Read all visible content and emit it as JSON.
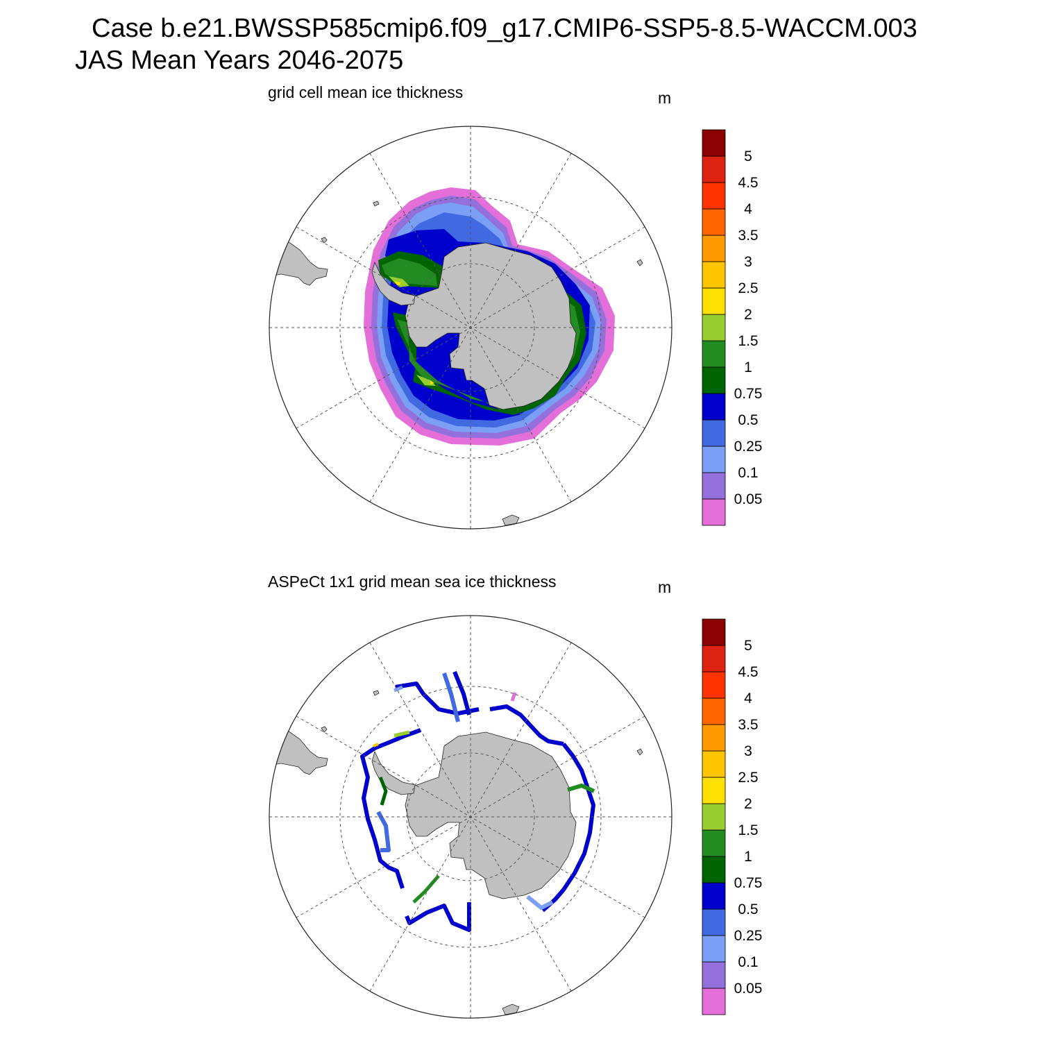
{
  "header": {
    "line1": "Case b.e21.BWSSP585cmip6.f09_g17.CMIP6-SSP5-8.5-WACCM.003",
    "line2": "JAS Mean   Years 2046-2075"
  },
  "colors": {
    "land": "#c0c0c0",
    "ocean": "#ffffff",
    "grid_line": "#555555",
    "levels": [
      "#e46fd9",
      "#9370db",
      "#7b9ff5",
      "#4169e1",
      "#0000cd",
      "#006400",
      "#228b22",
      "#9acd32",
      "#ffe000",
      "#ffc500",
      "#ff9900",
      "#ff6600",
      "#ff3300",
      "#dd2211",
      "#8b0000"
    ]
  },
  "colorbar": {
    "tick_labels": [
      "0.05",
      "0.1",
      "0.25",
      "0.5",
      "0.75",
      "1",
      "1.5",
      "2",
      "2.5",
      "3",
      "3.5",
      "4",
      "4.5",
      "5"
    ]
  },
  "panels": [
    {
      "title": "grid cell mean ice thickness",
      "unit": "m",
      "kind": "model"
    },
    {
      "title": "ASPeCt 1x1 grid mean sea ice thickness",
      "unit": "m",
      "kind": "observations"
    }
  ]
}
